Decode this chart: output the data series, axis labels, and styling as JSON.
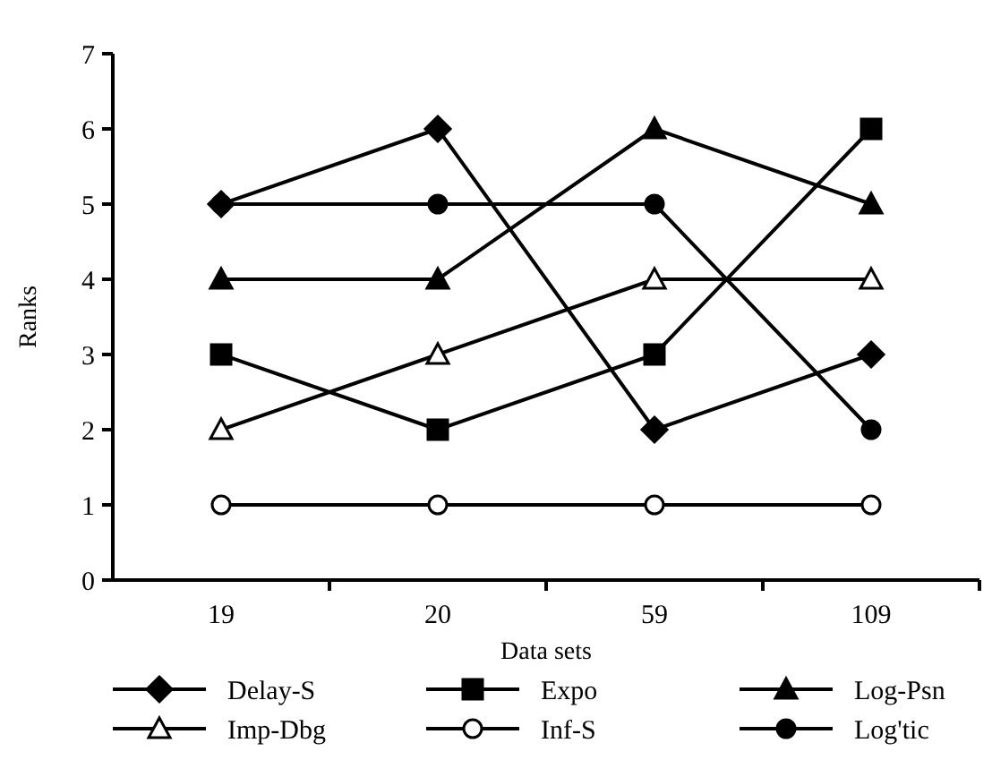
{
  "chart_data": {
    "type": "line",
    "xlabel": "Data sets",
    "ylabel": "Ranks",
    "categories": [
      "19",
      "20",
      "59",
      "109"
    ],
    "ylim": [
      0,
      7
    ],
    "yticks": [
      0,
      1,
      2,
      3,
      4,
      5,
      6,
      7
    ],
    "grid": false,
    "legend": "bottom",
    "line_style": "solid",
    "series": [
      {
        "name": "Delay-S",
        "color": "#000000",
        "marker": "diamond",
        "values": [
          5,
          6,
          2,
          3
        ]
      },
      {
        "name": "Expo",
        "color": "#000000",
        "marker": "square",
        "values": [
          3,
          2,
          3,
          6
        ]
      },
      {
        "name": "Log-Psn",
        "color": "#000000",
        "marker": "triangle",
        "values": [
          4,
          4,
          6,
          5
        ]
      },
      {
        "name": "Imp-Dbg",
        "color": "#000000",
        "marker": "triangle-open",
        "values": [
          2,
          3,
          4,
          4
        ]
      },
      {
        "name": "Inf-S",
        "color": "#000000",
        "marker": "circle-open",
        "values": [
          1,
          1,
          1,
          1
        ]
      },
      {
        "name": "Log'tic",
        "color": "#000000",
        "marker": "circle",
        "values": [
          5,
          5,
          5,
          2
        ]
      }
    ]
  }
}
